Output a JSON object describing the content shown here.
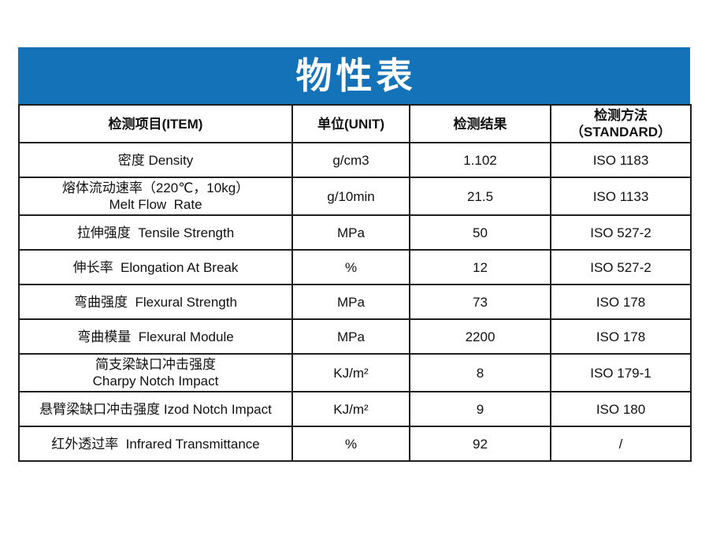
{
  "banner": {
    "title": "物性表"
  },
  "colors": {
    "banner_background": "#1473b8",
    "banner_text": "#ffffff",
    "table_border": "#1f1f1f",
    "table_text": "#111111",
    "page_background": "#ffffff"
  },
  "table": {
    "headers": {
      "item": "检测项目(ITEM)",
      "unit": "单位(UNIT)",
      "result": "检测结果",
      "method_line1": "检测方法",
      "method_line2": "（STANDARD）"
    },
    "rows": [
      {
        "item": [
          "密度 Density"
        ],
        "unit": "g/cm3",
        "result": "1.102",
        "method": "ISO 1183"
      },
      {
        "item": [
          "熔体流动速率（220℃，10kg）",
          "Melt Flow  Rate"
        ],
        "unit": "g/10min",
        "result": "21.5",
        "method": "ISO 1133"
      },
      {
        "item": [
          "拉伸强度  Tensile Strength"
        ],
        "unit": "MPa",
        "result": "50",
        "method": "ISO 527-2"
      },
      {
        "item": [
          "伸长率  Elongation At Break"
        ],
        "unit": "%",
        "result": "12",
        "method": "ISO 527-2"
      },
      {
        "item": [
          "弯曲强度  Flexural Strength"
        ],
        "unit": "MPa",
        "result": "73",
        "method": "ISO 178"
      },
      {
        "item": [
          "弯曲模量  Flexural Module"
        ],
        "unit": "MPa",
        "result": "2200",
        "method": "ISO 178"
      },
      {
        "item": [
          "简支梁缺口冲击强度",
          "Charpy Notch Impact"
        ],
        "unit": "KJ/m²",
        "result": "8",
        "method": "ISO 179-1"
      },
      {
        "item": [
          "悬臂梁缺口冲击强度 Izod Notch Impact"
        ],
        "unit": "KJ/m²",
        "result": "9",
        "method": "ISO 180"
      },
      {
        "item": [
          "红外透过率  Infrared Transmittance"
        ],
        "unit": "%",
        "result": "92",
        "method": "/"
      }
    ]
  }
}
